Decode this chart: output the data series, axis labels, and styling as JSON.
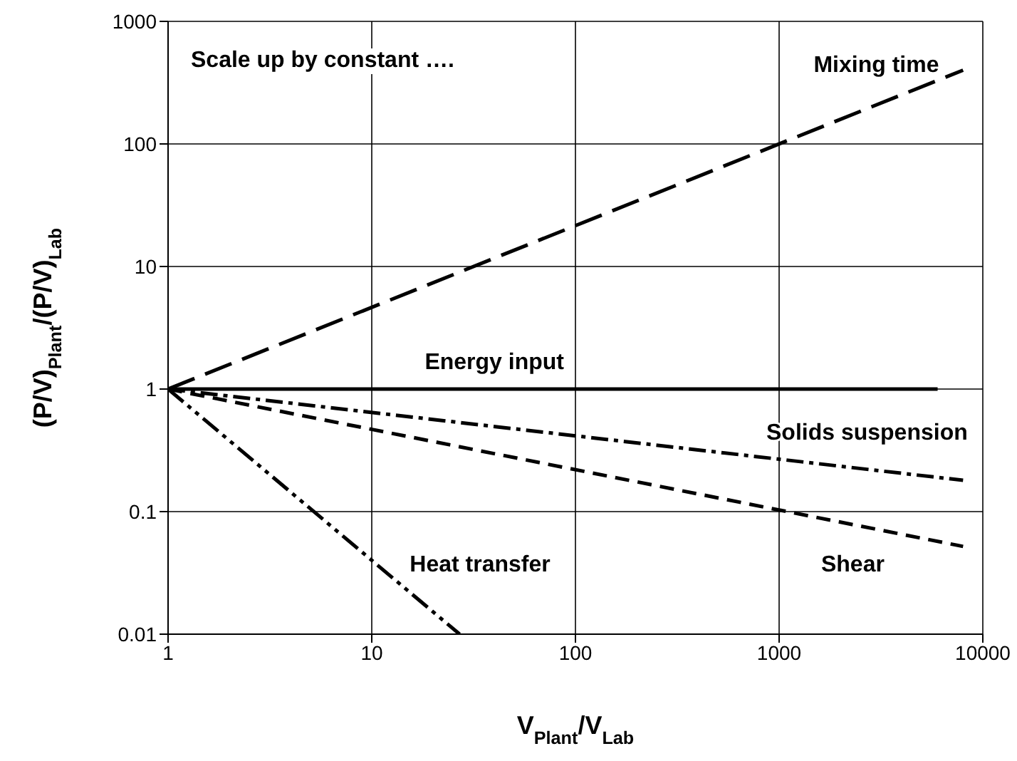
{
  "chart_data": {
    "type": "line",
    "title": "Scale up by constant ….",
    "xlabel": "V$_{Plant}$/V$_{Lab}$",
    "ylabel": "(P/V)$_{Plant}$/(P/V)$_{Lab}$",
    "log": "xy",
    "xlim": [
      1,
      10000
    ],
    "xticks": [
      1,
      10,
      100,
      1000,
      10000
    ],
    "ylim": [
      0.01,
      1000
    ],
    "yticks": [
      0.01,
      0.1,
      1,
      10,
      100,
      1000
    ],
    "grid": true,
    "legend": false,
    "marker": "none",
    "series": [
      {
        "name": "Mixing time",
        "color": "#000000",
        "line_style": "longdash",
        "x": [
          1,
          8000
        ],
        "values": [
          1,
          400
        ]
      },
      {
        "name": "Energy input",
        "color": "#000000",
        "line_style": "solid",
        "x": [
          1,
          6000
        ],
        "values": [
          1,
          1
        ]
      },
      {
        "name": "Solids suspension",
        "color": "#000000",
        "line_style": "dashdot",
        "x": [
          1,
          8000
        ],
        "values": [
          1,
          0.18
        ]
      },
      {
        "name": "Shear",
        "color": "#000000",
        "line_style": "dashed",
        "x": [
          1,
          8000
        ],
        "values": [
          1,
          0.052
        ]
      },
      {
        "name": "Heat transfer",
        "color": "#000000",
        "line_style": "dashdotdot",
        "x": [
          1,
          27
        ],
        "values": [
          1,
          0.01
        ]
      }
    ]
  }
}
